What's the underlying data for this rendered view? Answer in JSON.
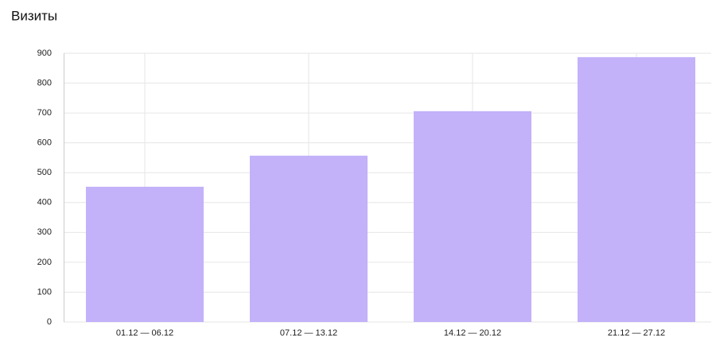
{
  "chart_data": {
    "type": "bar",
    "title": "Визиты",
    "categories": [
      "01.12 — 06.12",
      "07.12 — 13.12",
      "14.12 — 20.12",
      "21.12 — 27.12"
    ],
    "values": [
      453,
      557,
      706,
      887
    ],
    "color": "#c3b1fa",
    "ylim": [
      0,
      900
    ],
    "yticks": [
      0,
      100,
      200,
      300,
      400,
      500,
      600,
      700,
      800,
      900
    ],
    "grid": true
  }
}
